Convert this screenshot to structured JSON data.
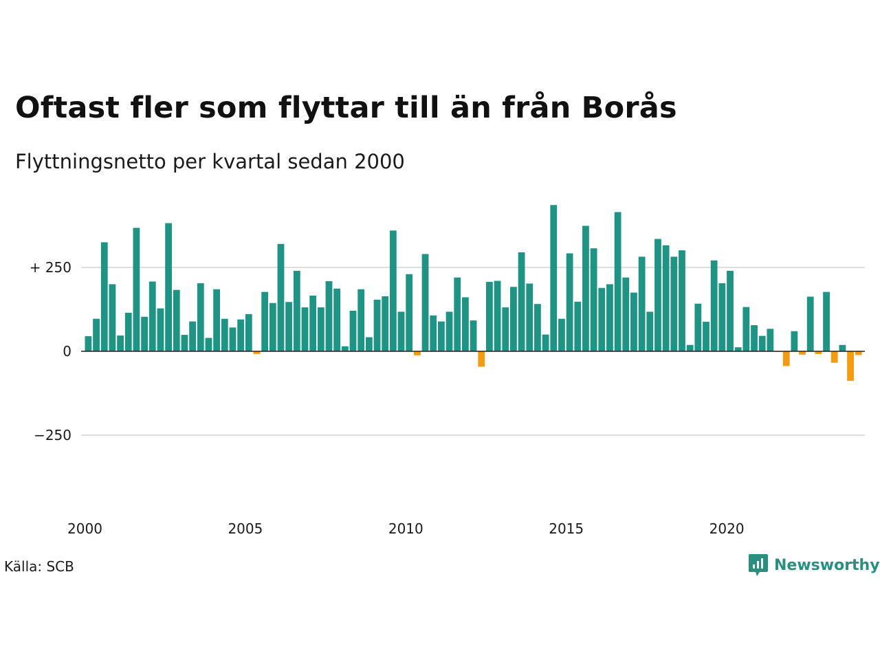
{
  "header": {
    "title": "Oftast fler som flyttar till än från Borås",
    "subtitle": "Flyttningsnetto per kvartal sedan 2000"
  },
  "footer": {
    "source": "Källa: SCB",
    "brand": "Newsworthy"
  },
  "colors": {
    "positive": "#1f9484",
    "negative": "#f39c12",
    "gridline": "#dddddd",
    "brand": "#2a8f7f"
  },
  "chart_data": {
    "type": "bar",
    "xlabel": "",
    "ylabel": "",
    "ylim": [
      -420,
      450
    ],
    "y_ticks": [
      {
        "value": 250,
        "label": "+ 250"
      },
      {
        "value": 0,
        "label": "0"
      },
      {
        "value": -250,
        "label": "−250"
      }
    ],
    "x_ticks": [
      "2000",
      "2005",
      "2010",
      "2015",
      "2020"
    ],
    "start_year": 2000,
    "grid": true,
    "legend": "none",
    "values": [
      45,
      97,
      325,
      200,
      47,
      115,
      368,
      103,
      208,
      128,
      382,
      183,
      49,
      89,
      203,
      40,
      185,
      97,
      71,
      95,
      111,
      -8,
      177,
      144,
      320,
      147,
      240,
      131,
      166,
      131,
      209,
      187,
      15,
      121,
      185,
      42,
      154,
      164,
      360,
      118,
      230,
      -12,
      290,
      107,
      89,
      118,
      220,
      161,
      92,
      -46,
      207,
      210,
      131,
      192,
      295,
      202,
      141,
      50,
      436,
      97,
      292,
      148,
      374,
      307,
      189,
      200,
      415,
      220,
      175,
      282,
      118,
      335,
      316,
      282,
      301,
      19,
      142,
      88,
      271,
      203,
      240,
      12,
      132,
      78,
      46,
      67,
      -2,
      -44,
      60,
      -10,
      163,
      -8,
      177,
      -34,
      19,
      -88,
      -11
    ]
  }
}
